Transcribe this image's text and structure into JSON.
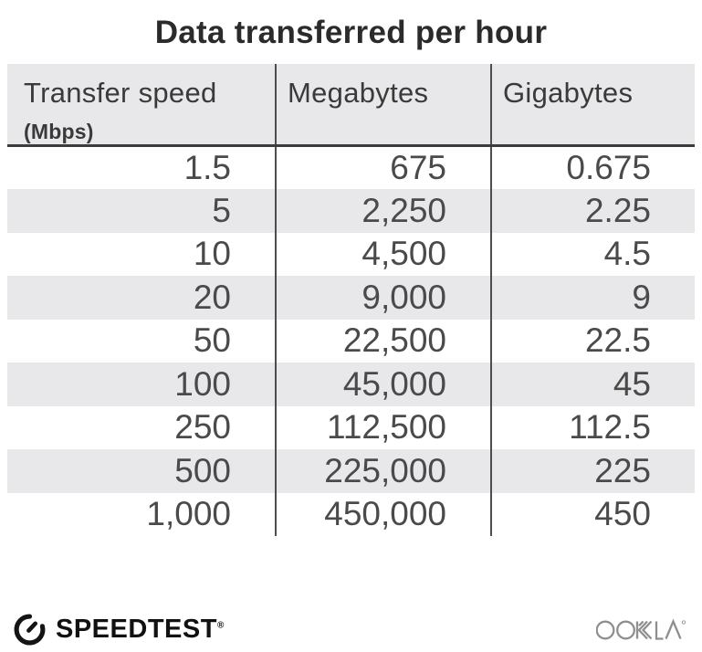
{
  "title": "Data transferred per hour",
  "table": {
    "headers": [
      {
        "label": "Transfer speed",
        "sublabel": "(Mbps)"
      },
      {
        "label": "Megabytes"
      },
      {
        "label": "Gigabytes"
      }
    ],
    "rows": [
      [
        "1.5",
        "675",
        "0.675"
      ],
      [
        "5",
        "2,250",
        "2.25"
      ],
      [
        "10",
        "4,500",
        "4.5"
      ],
      [
        "20",
        "9,000",
        "9"
      ],
      [
        "50",
        "22,500",
        "22.5"
      ],
      [
        "100",
        "45,000",
        "45"
      ],
      [
        "250",
        "112,500",
        "112.5"
      ],
      [
        "500",
        "225,000",
        "225"
      ],
      [
        "1,000",
        "450,000",
        "450"
      ]
    ]
  },
  "footer": {
    "brand": "SPEEDTEST",
    "brand_mark": "®",
    "attribution": "OOKLA"
  },
  "colors": {
    "stripe": "#e8e8ea",
    "header_bg": "#e8e8ea",
    "divider": "#4d4d4d",
    "body_text": "#4a4a4a",
    "title_text": "#2b2b2b",
    "ookla_gray": "#8d8d8d"
  },
  "chart_data": {
    "type": "table",
    "title": "Data transferred per hour",
    "columns": [
      "Transfer speed (Mbps)",
      "Megabytes",
      "Gigabytes"
    ],
    "rows": [
      [
        1.5,
        675,
        0.675
      ],
      [
        5,
        2250,
        2.25
      ],
      [
        10,
        4500,
        4.5
      ],
      [
        20,
        9000,
        9
      ],
      [
        50,
        22500,
        22.5
      ],
      [
        100,
        45000,
        45
      ],
      [
        250,
        112500,
        112.5
      ],
      [
        500,
        225000,
        225
      ],
      [
        1000,
        450000,
        450
      ]
    ]
  }
}
